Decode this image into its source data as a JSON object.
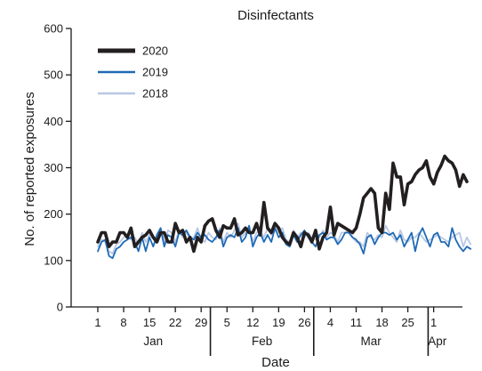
{
  "chart_data": {
    "type": "line",
    "title": "Disinfectants",
    "xlabel": "Date",
    "ylabel": "No. of reported exposures",
    "ylim": [
      0,
      600
    ],
    "yticks": [
      "0",
      "100",
      "200",
      "300",
      "400",
      "500",
      "600"
    ],
    "xtick_labels": [
      "1",
      "8",
      "15",
      "22",
      "29",
      "5",
      "12",
      "19",
      "26",
      "4",
      "11",
      "18",
      "25",
      "1"
    ],
    "month_labels": [
      "Jan",
      "Feb",
      "Mar",
      "Apr"
    ],
    "legend_position": "top-left",
    "grid": false,
    "x_start_date": "Jan 1",
    "series": [
      {
        "name": "2020",
        "color": "#231f20",
        "values": [
          140,
          160,
          160,
          130,
          140,
          140,
          160,
          160,
          150,
          170,
          130,
          140,
          150,
          155,
          165,
          150,
          140,
          160,
          160,
          140,
          140,
          180,
          160,
          165,
          140,
          150,
          120,
          150,
          140,
          175,
          185,
          190,
          165,
          150,
          175,
          170,
          170,
          190,
          155,
          160,
          170,
          160,
          160,
          180,
          155,
          225,
          170,
          160,
          180,
          170,
          150,
          140,
          135,
          160,
          150,
          130,
          160,
          155,
          140,
          165,
          125,
          150,
          160,
          215,
          155,
          180,
          175,
          170,
          165,
          160,
          170,
          200,
          235,
          245,
          255,
          245,
          170,
          160,
          245,
          210,
          310,
          280,
          280,
          220,
          265,
          270,
          285,
          295,
          300,
          315,
          280,
          265,
          290,
          305,
          325,
          315,
          310,
          295,
          260,
          285,
          270
        ]
      },
      {
        "name": "2019",
        "color": "#1f6ab5",
        "values": [
          120,
          140,
          145,
          110,
          105,
          125,
          130,
          140,
          145,
          150,
          140,
          120,
          150,
          120,
          150,
          130,
          155,
          170,
          130,
          155,
          150,
          130,
          160,
          155,
          165,
          150,
          145,
          160,
          150,
          155,
          145,
          140,
          150,
          165,
          130,
          150,
          155,
          150,
          170,
          140,
          150,
          175,
          130,
          150,
          160,
          140,
          155,
          140,
          170,
          150,
          160,
          135,
          130,
          155,
          140,
          155,
          165,
          150,
          140,
          130,
          155,
          160,
          145,
          150,
          150,
          135,
          145,
          160,
          160,
          150,
          145,
          135,
          115,
          150,
          155,
          135,
          150,
          160,
          160,
          155,
          160,
          145,
          155,
          130,
          145,
          160,
          120,
          155,
          170,
          150,
          130,
          155,
          160,
          140,
          140,
          130,
          170,
          145,
          130,
          120,
          130,
          125
        ]
      },
      {
        "name": "2018",
        "color": "#b9c8e4",
        "values": [
          130,
          145,
          140,
          120,
          115,
          135,
          140,
          150,
          155,
          145,
          150,
          135,
          160,
          140,
          155,
          150,
          145,
          170,
          140,
          165,
          160,
          140,
          165,
          150,
          160,
          145,
          150,
          170,
          145,
          140,
          160,
          150,
          145,
          170,
          140,
          160,
          150,
          165,
          180,
          150,
          160,
          175,
          140,
          160,
          165,
          150,
          170,
          155,
          180,
          160,
          170,
          145,
          140,
          165,
          150,
          160,
          150,
          160,
          150,
          145,
          150,
          165,
          150,
          160,
          155,
          140,
          160,
          160,
          165,
          150,
          140,
          140,
          130,
          160,
          150,
          145,
          155,
          150,
          175,
          160,
          150,
          140,
          165,
          145,
          140,
          150,
          150,
          160,
          150,
          140,
          145,
          150,
          155,
          150,
          145,
          140,
          150,
          155,
          160,
          130,
          150,
          135
        ]
      }
    ]
  }
}
